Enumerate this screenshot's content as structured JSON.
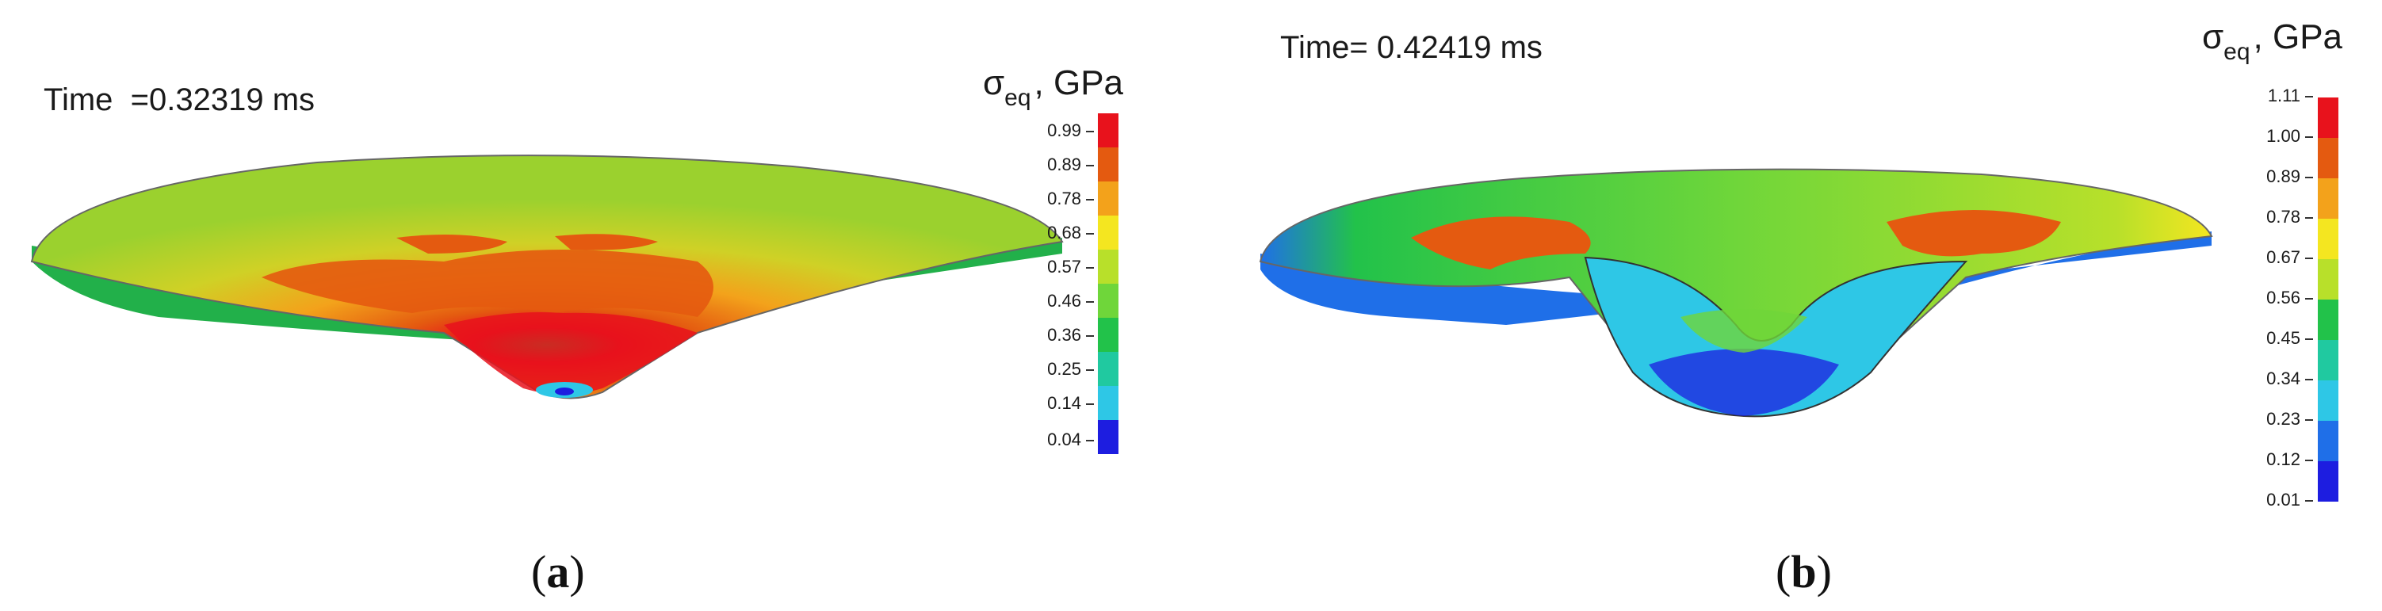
{
  "panel_a": {
    "time_label": "Time  =0.32319 ms",
    "legend": {
      "symbol": "σ",
      "subscript": "eq",
      "unit": ", GPa",
      "ticks": [
        "0.99",
        "0.89",
        "0.78",
        "0.68",
        "0.57",
        "0.46",
        "0.36",
        "0.25",
        "0.14",
        "0.04"
      ]
    },
    "caption_open": "(",
    "caption_letter": "a",
    "caption_close": ")"
  },
  "panel_b": {
    "time_label": "Time= 0.42419 ms",
    "legend": {
      "symbol": "σ",
      "subscript": "eq",
      "unit": ", GPa",
      "ticks": [
        "1.11",
        "1.00",
        "0.89",
        "0.78",
        "0.67",
        "0.56",
        "0.45",
        "0.34",
        "0.23",
        "0.12",
        "0.01"
      ]
    },
    "caption_open": "(",
    "caption_letter": "b",
    "caption_close": ")"
  },
  "colors": {
    "red": "#e8121c",
    "orange_red": "#e45a10",
    "orange": "#f3a21b",
    "yellow": "#f4e620",
    "yellow_green": "#b8e02a",
    "green_light": "#6fd63a",
    "green": "#22c24a",
    "teal": "#20c9a0",
    "cyan": "#2ec7e6",
    "blue": "#1f6fe8",
    "deep_blue": "#1d1de0"
  }
}
